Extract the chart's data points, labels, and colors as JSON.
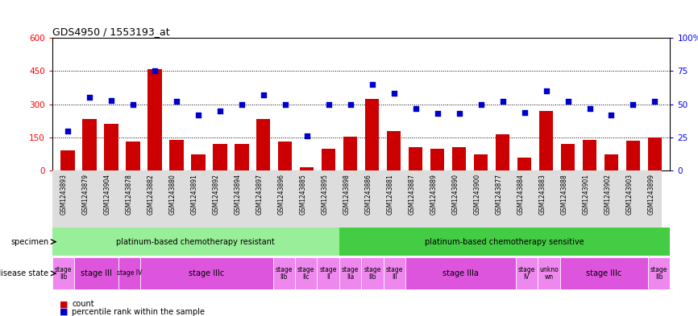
{
  "title": "GDS4950 / 1553193_at",
  "samples": [
    "GSM1243893",
    "GSM1243879",
    "GSM1243904",
    "GSM1243878",
    "GSM1243882",
    "GSM1243880",
    "GSM1243891",
    "GSM1243892",
    "GSM1243894",
    "GSM1243897",
    "GSM1243896",
    "GSM1243885",
    "GSM1243895",
    "GSM1243898",
    "GSM1243886",
    "GSM1243881",
    "GSM1243887",
    "GSM1243889",
    "GSM1243890",
    "GSM1243900",
    "GSM1243877",
    "GSM1243884",
    "GSM1243883",
    "GSM1243888",
    "GSM1243901",
    "GSM1243902",
    "GSM1243903",
    "GSM1243899"
  ],
  "count_values": [
    90,
    235,
    210,
    130,
    460,
    140,
    75,
    120,
    120,
    235,
    130,
    15,
    100,
    155,
    325,
    180,
    105,
    100,
    105,
    75,
    165,
    60,
    270,
    120,
    140,
    75,
    135,
    150
  ],
  "percentile_values": [
    30,
    55,
    53,
    50,
    75,
    52,
    42,
    45,
    50,
    57,
    50,
    26,
    50,
    50,
    65,
    58,
    47,
    43,
    43,
    50,
    52,
    44,
    60,
    52,
    47,
    42,
    50,
    52
  ],
  "ylim_left": [
    0,
    600
  ],
  "ylim_right": [
    0,
    100
  ],
  "yticks_left": [
    0,
    150,
    300,
    450,
    600
  ],
  "yticks_right": [
    0,
    25,
    50,
    75,
    100
  ],
  "bar_color": "#cc0000",
  "dot_color": "#0000cc",
  "bg_color": "#ffffff",
  "specimen_groups": [
    {
      "text": "platinum-based chemotherapy resistant",
      "start": 0,
      "end": 13,
      "color": "#99ee99"
    },
    {
      "text": "platinum-based chemotherapy sensitive",
      "start": 13,
      "end": 28,
      "color": "#44cc44"
    }
  ],
  "disease_segments": [
    {
      "text": "stage\nIIb",
      "start": 0,
      "end": 1,
      "color": "#ee88ee"
    },
    {
      "text": "stage III",
      "start": 1,
      "end": 3,
      "color": "#dd55dd"
    },
    {
      "text": "stage IV",
      "start": 3,
      "end": 4,
      "color": "#dd55dd"
    },
    {
      "text": "stage IIIc",
      "start": 4,
      "end": 10,
      "color": "#dd55dd"
    },
    {
      "text": "stage\nIIb",
      "start": 10,
      "end": 11,
      "color": "#ee88ee"
    },
    {
      "text": "stage\nIIc",
      "start": 11,
      "end": 12,
      "color": "#ee88ee"
    },
    {
      "text": "stage\nII",
      "start": 12,
      "end": 13,
      "color": "#ee88ee"
    },
    {
      "text": "stage\nIIa",
      "start": 13,
      "end": 14,
      "color": "#ee88ee"
    },
    {
      "text": "stage\nIIb",
      "start": 14,
      "end": 15,
      "color": "#ee88ee"
    },
    {
      "text": "stage\nIII",
      "start": 15,
      "end": 16,
      "color": "#ee88ee"
    },
    {
      "text": "stage IIIa",
      "start": 16,
      "end": 21,
      "color": "#dd55dd"
    },
    {
      "text": "stage\nIV",
      "start": 21,
      "end": 22,
      "color": "#ee88ee"
    },
    {
      "text": "unkno\nwn",
      "start": 22,
      "end": 23,
      "color": "#ee88ee"
    },
    {
      "text": "stage IIIc",
      "start": 23,
      "end": 27,
      "color": "#dd55dd"
    },
    {
      "text": "stage\nIIb",
      "start": 27,
      "end": 28,
      "color": "#ee88ee"
    }
  ],
  "legend_items": [
    {
      "color": "#cc0000",
      "label": "count"
    },
    {
      "color": "#0000cc",
      "label": "percentile rank within the sample"
    }
  ]
}
